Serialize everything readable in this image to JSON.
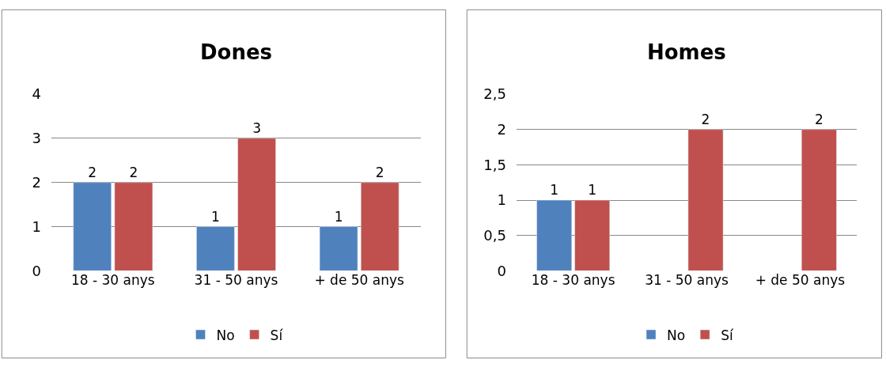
{
  "chart_data": [
    {
      "type": "bar",
      "title": "Dones",
      "categories": [
        "18 - 30 anys",
        "31 - 50 anys",
        "+ de 50 anys"
      ],
      "series": [
        {
          "name": "No",
          "color": "#4f81bd",
          "values": [
            2,
            1,
            1
          ]
        },
        {
          "name": "Sí",
          "color": "#c0504d",
          "values": [
            2,
            3,
            2
          ]
        }
      ],
      "ylim": [
        0,
        4
      ],
      "yticks": [
        0,
        1,
        2,
        3,
        4
      ],
      "grid": "y",
      "legend": "bottom",
      "data_labels": true
    },
    {
      "type": "bar",
      "title": "Homes",
      "categories": [
        "18 - 30 anys",
        "31 - 50 anys",
        "+ de 50 anys"
      ],
      "series": [
        {
          "name": "No",
          "color": "#4f81bd",
          "values": [
            1,
            null,
            null
          ]
        },
        {
          "name": "Sí",
          "color": "#c0504d",
          "values": [
            1,
            2,
            2
          ]
        }
      ],
      "ylim": [
        0,
        2.5
      ],
      "yticks": [
        0,
        {
          "value": 0.5,
          "label": "0,5"
        },
        1,
        {
          "value": 1.5,
          "label": "1,5"
        },
        2,
        {
          "value": 2.5,
          "label": "2,5"
        }
      ],
      "grid": "y",
      "legend": "bottom",
      "data_labels": true
    }
  ]
}
